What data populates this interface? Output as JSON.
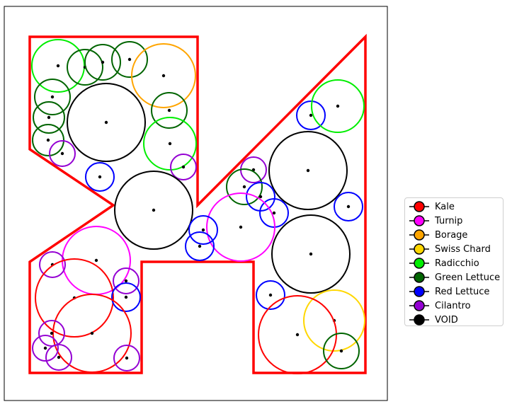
{
  "legend": {
    "items": [
      {
        "label": "Kale",
        "color": "#ff0000"
      },
      {
        "label": "Turnip",
        "color": "#ff00ff"
      },
      {
        "label": "Borage",
        "color": "#ffa500"
      },
      {
        "label": "Swiss Chard",
        "color": "#ffd700"
      },
      {
        "label": "Radicchio",
        "color": "#00ee00"
      },
      {
        "label": "Green Lettuce",
        "color": "#006400"
      },
      {
        "label": "Red Lettuce",
        "color": "#0000ff"
      },
      {
        "label": "Cilantro",
        "color": "#9400d3"
      },
      {
        "label": "VOID",
        "color": "#000000"
      }
    ]
  },
  "colors": {
    "boundary": "#ff0000",
    "frame": "#000000",
    "background": "#ffffff"
  }
}
